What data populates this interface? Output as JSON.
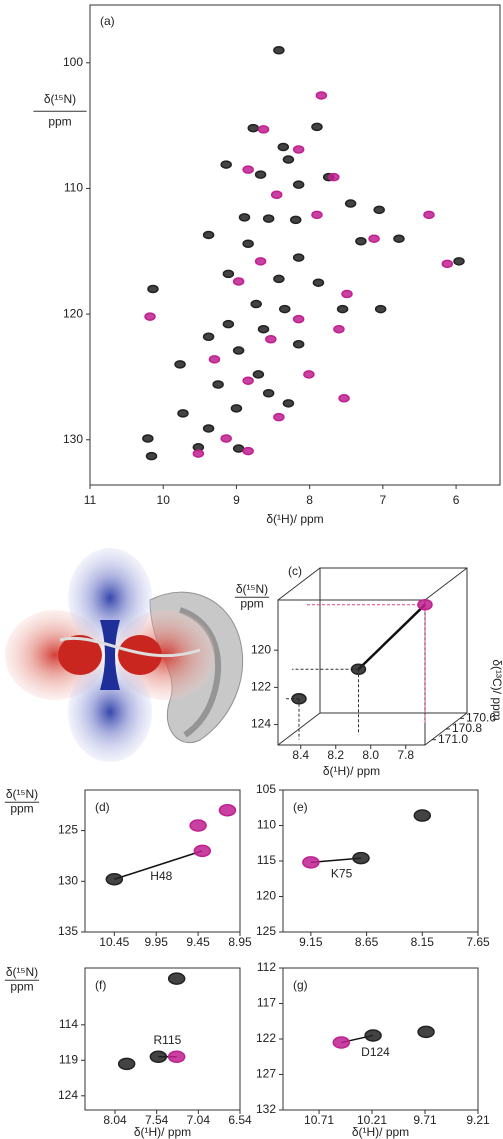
{
  "chart_data": [
    {
      "type": "scatter",
      "panel": "(a)",
      "x_label": "δ(¹H)/ ppm",
      "y_label": "δ(¹⁵N)",
      "y_unit": "ppm",
      "xlim": [
        11.0,
        5.4
      ],
      "ylim": [
        95.4,
        133.6
      ],
      "xticks": [
        11,
        10,
        9,
        8,
        7,
        6
      ],
      "yticks": [
        100,
        110,
        120,
        130
      ],
      "series": [
        {
          "color": "#222222",
          "x": [
            8.42,
            7.9,
            8.77,
            8.36,
            8.29,
            9.14,
            8.67,
            7.74,
            8.15,
            7.44,
            8.89,
            8.56,
            8.19,
            9.38,
            7.05,
            7.3,
            6.78,
            5.96,
            8.84,
            8.15,
            9.11,
            8.42,
            7.88,
            10.14,
            8.73,
            8.34,
            7.55,
            7.03,
            9.11,
            8.63,
            9.38,
            8.15,
            8.97,
            9.77,
            8.7,
            9.25,
            8.56,
            9.0,
            8.29,
            9.73,
            9.38,
            10.21,
            9.52,
            8.97,
            10.16
          ],
          "values": [
            99.0,
            105.1,
            105.2,
            106.7,
            107.7,
            108.1,
            108.9,
            109.1,
            109.7,
            111.2,
            112.3,
            112.4,
            112.5,
            113.7,
            111.7,
            114.2,
            114.0,
            115.8,
            114.4,
            115.5,
            116.8,
            117.2,
            117.5,
            118.0,
            119.2,
            119.6,
            119.6,
            119.6,
            120.8,
            121.2,
            121.8,
            122.4,
            122.9,
            124.0,
            124.8,
            125.6,
            126.3,
            127.5,
            127.1,
            127.9,
            129.1,
            129.9,
            130.6,
            130.7,
            131.3
          ]
        },
        {
          "color": "#c0208f",
          "x": [
            7.84,
            8.63,
            8.15,
            8.84,
            7.67,
            8.45,
            7.9,
            6.37,
            7.12,
            6.12,
            8.67,
            8.97,
            7.49,
            10.18,
            8.15,
            7.6,
            8.53,
            9.3,
            8.01,
            8.84,
            7.53,
            8.42,
            9.14,
            8.84,
            9.52
          ],
          "values": [
            102.6,
            105.3,
            106.9,
            108.5,
            109.1,
            110.5,
            112.1,
            112.1,
            114.0,
            116.0,
            115.8,
            117.4,
            118.4,
            120.2,
            120.4,
            121.2,
            122.0,
            123.6,
            124.8,
            125.3,
            126.7,
            128.2,
            129.9,
            130.9,
            131.1
          ]
        }
      ]
    },
    {
      "type": "scatter3d",
      "panel": "(c)",
      "x_label": "δ(¹H)/ ppm",
      "y_label": "δ(¹⁵N)",
      "y_unit": "ppm",
      "z_label": "δ(¹³C)/ ppm",
      "xlim": [
        8.53,
        7.69
      ],
      "ylim": [
        117.3,
        125.1
      ],
      "zlim": [
        171.1,
        170.5
      ],
      "xticks": [
        8.4,
        8.2,
        {
          "value": 8,
          "label": "8.0"
        },
        7.8
      ],
      "yticks": [
        120,
        122,
        124
      ],
      "zticks": [
        170.6,
        170.8,
        {
          "value": 171,
          "label": "171.0"
        }
      ],
      "series": [
        {
          "color": "#222222",
          "x": [
            8.45,
            8.15
          ],
          "values": [
            122.9,
            121.6
          ],
          "z": [
            171.0,
            170.9
          ]
        },
        {
          "color": "#c0208f",
          "x": [
            7.85
          ],
          "values": [
            118.7
          ],
          "z": [
            170.7
          ]
        }
      ]
    },
    {
      "type": "scatter",
      "panel": "(d)",
      "y_label": "δ(¹⁵N)",
      "y_unit": "ppm",
      "annotation": "H48",
      "xlim": [
        10.8,
        8.95
      ],
      "ylim": [
        121,
        135
      ],
      "xticks": [
        10.45,
        9.95,
        9.45,
        8.95
      ],
      "yticks": [
        125,
        130,
        135
      ],
      "series": [
        {
          "color": "#222222",
          "x": [
            10.45
          ],
          "values": [
            129.8
          ]
        },
        {
          "color": "#c0208f",
          "x": [
            9.45,
            9.4,
            9.1
          ],
          "values": [
            124.5,
            127.0,
            123.0
          ]
        }
      ]
    },
    {
      "type": "scatter",
      "panel": "(e)",
      "annotation": "K75",
      "xlim": [
        9.4,
        7.65
      ],
      "ylim": [
        105,
        125
      ],
      "xticks": [
        9.15,
        8.65,
        8.15,
        7.65
      ],
      "yticks": [
        105,
        110,
        115,
        120,
        125
      ],
      "series": [
        {
          "color": "#222222",
          "x": [
            8.7,
            8.15
          ],
          "values": [
            114.6,
            108.6
          ]
        },
        {
          "color": "#c0208f",
          "x": [
            9.15
          ],
          "values": [
            115.2
          ]
        }
      ]
    },
    {
      "type": "scatter",
      "panel": "(f)",
      "x_label": "δ(¹H)/ ppm",
      "y_label": "δ(¹⁵N)",
      "y_unit": "ppm",
      "annotation": "R115",
      "xlim": [
        8.4,
        6.54
      ],
      "ylim": [
        106,
        126
      ],
      "xticks": [
        8.04,
        7.54,
        7.04,
        6.54
      ],
      "yticks": [
        114,
        119,
        124
      ],
      "series": [
        {
          "color": "#222222",
          "x": [
            7.52,
            7.9,
            7.3
          ],
          "values": [
            118.5,
            119.5,
            107.5
          ]
        },
        {
          "color": "#c0208f",
          "x": [
            7.3
          ],
          "values": [
            118.5
          ]
        }
      ]
    },
    {
      "type": "scatter",
      "panel": "(g)",
      "x_label": "δ(¹H)/ ppm",
      "annotation": "D124",
      "xlim": [
        11.05,
        9.21
      ],
      "ylim": [
        112,
        132
      ],
      "xticks": [
        10.71,
        10.21,
        9.71,
        9.21
      ],
      "yticks": [
        112,
        117,
        122,
        127,
        132
      ],
      "series": [
        {
          "color": "#222222",
          "x": [
            10.2,
            9.7
          ],
          "values": [
            121.5,
            121.0
          ]
        },
        {
          "color": "#c0208f",
          "x": [
            10.5
          ],
          "values": [
            122.5
          ]
        }
      ]
    }
  ]
}
